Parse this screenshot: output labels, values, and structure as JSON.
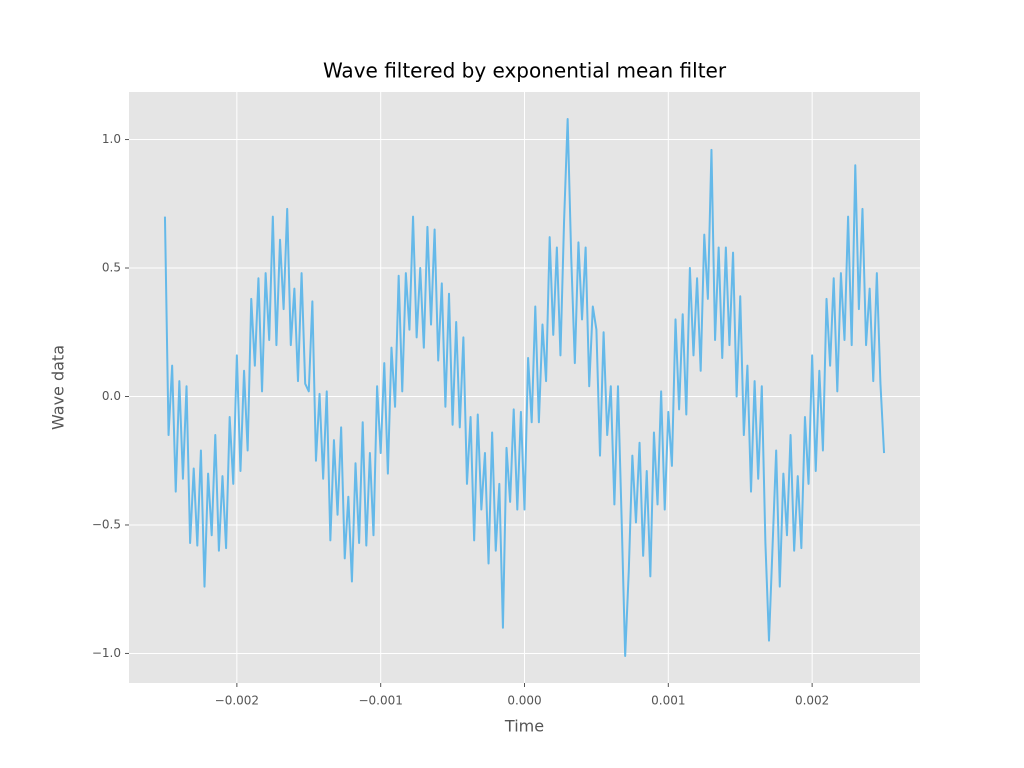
{
  "chart_data": {
    "type": "line",
    "title": "Wave filtered by exponential mean filter",
    "xlabel": "Time",
    "ylabel": "Wave data",
    "xlim": [
      -0.00275,
      0.00275
    ],
    "ylim": [
      -1.115,
      1.185
    ],
    "xticks": [
      {
        "value": -0.002,
        "label": "−0.002"
      },
      {
        "value": -0.001,
        "label": "−0.001"
      },
      {
        "value": 0,
        "label": "0.000"
      },
      {
        "value": 0.001,
        "label": "0.001"
      },
      {
        "value": 0.002,
        "label": "0.002"
      }
    ],
    "yticks": [
      {
        "value": -1.0,
        "label": "−1.0"
      },
      {
        "value": -0.5,
        "label": "−0.5"
      },
      {
        "value": 0.0,
        "label": "0.0"
      },
      {
        "value": 0.5,
        "label": "0.5"
      },
      {
        "value": 1.0,
        "label": "1.0"
      }
    ],
    "grid": true,
    "x": [
      -0.0025,
      -0.002475,
      -0.00245,
      -0.002425,
      -0.0024,
      -0.002375,
      -0.00235,
      -0.002325,
      -0.0023,
      -0.002275,
      -0.00225,
      -0.002225,
      -0.0022,
      -0.002175,
      -0.00215,
      -0.002125,
      -0.0021,
      -0.002075,
      -0.00205,
      -0.002025,
      -0.002,
      -0.001975,
      -0.00195,
      -0.001925,
      -0.0019,
      -0.001875,
      -0.00185,
      -0.001825,
      -0.0018,
      -0.001775,
      -0.00175,
      -0.001725,
      -0.0017,
      -0.001675,
      -0.00165,
      -0.001625,
      -0.0016,
      -0.001575,
      -0.00155,
      -0.001525,
      -0.0015,
      -0.001475,
      -0.00145,
      -0.001425,
      -0.0014,
      -0.001375,
      -0.00135,
      -0.001325,
      -0.0013,
      -0.001275,
      -0.00125,
      -0.001225,
      -0.0012,
      -0.001175,
      -0.00115,
      -0.001125,
      -0.0011,
      -0.001075,
      -0.00105,
      -0.001025,
      -0.001,
      -0.000975,
      -0.00095,
      -0.000925,
      -0.0009,
      -0.000875,
      -0.00085,
      -0.000825,
      -0.0008,
      -0.000775,
      -0.00075,
      -0.000725,
      -0.0007,
      -0.000675,
      -0.00065,
      -0.000625,
      -0.0006,
      -0.000575,
      -0.00055,
      -0.000525,
      -0.0005,
      -0.000475,
      -0.00045,
      -0.000425,
      -0.0004,
      -0.000375,
      -0.00035,
      -0.000325,
      -0.0003,
      -0.000275,
      -0.00025,
      -0.000225,
      -0.0002,
      -0.000175,
      -0.00015,
      -0.000125,
      -0.0001,
      -7.5e-05,
      -5e-05,
      -2.5e-05,
      0,
      2.5e-05,
      5e-05,
      7.5e-05,
      0.0001,
      0.000125,
      0.00015,
      0.000175,
      0.0002,
      0.000225,
      0.00025,
      0.000275,
      0.0003,
      0.000325,
      0.00035,
      0.000375,
      0.0004,
      0.000425,
      0.00045,
      0.000475,
      0.0005,
      0.000525,
      0.00055,
      0.000575,
      0.0006,
      0.000625,
      0.00065,
      0.000675,
      0.0007,
      0.000725,
      0.00075,
      0.000775,
      0.0008,
      0.000825,
      0.00085,
      0.000875,
      0.0009,
      0.000925,
      0.00095,
      0.000975,
      0.001,
      0.001025,
      0.00105,
      0.001075,
      0.0011,
      0.001125,
      0.00115,
      0.001175,
      0.0012,
      0.001225,
      0.00125,
      0.001275,
      0.0013,
      0.001325,
      0.00135,
      0.001375,
      0.0014,
      0.001425,
      0.00145,
      0.001475,
      0.0015,
      0.001525,
      0.00155,
      0.001575,
      0.0016,
      0.001625,
      0.00165,
      0.001675,
      0.0017,
      0.001725,
      0.00175,
      0.001775,
      0.0018,
      0.001825,
      0.00185,
      0.001875,
      0.0019,
      0.001925,
      0.00195,
      0.001975,
      0.002,
      0.002025,
      0.00205,
      0.002075,
      0.0021,
      0.002125,
      0.00215,
      0.002175,
      0.0022,
      0.002225,
      0.00225,
      0.002275,
      0.0023,
      0.002325,
      0.00235,
      0.002375,
      0.0024,
      0.002425,
      0.00245,
      0.002475,
      0.0025
    ],
    "series": [
      {
        "color": "#56b4e9",
        "values": [
          0.7,
          -0.15,
          0.12,
          -0.37,
          0.06,
          -0.32,
          0.04,
          -0.57,
          -0.28,
          -0.58,
          -0.21,
          -0.74,
          -0.3,
          -0.54,
          -0.15,
          -0.6,
          -0.31,
          -0.59,
          -0.08,
          -0.34,
          0.16,
          -0.29,
          0.1,
          -0.21,
          0.38,
          0.12,
          0.46,
          0.02,
          0.48,
          0.22,
          0.7,
          0.2,
          0.61,
          0.34,
          0.73,
          0.2,
          0.42,
          0.06,
          0.48,
          0.05,
          0.02,
          0.37,
          -0.25,
          0.01,
          -0.32,
          0.02,
          -0.56,
          -0.17,
          -0.46,
          -0.12,
          -0.63,
          -0.39,
          -0.72,
          -0.26,
          -0.57,
          -0.1,
          -0.58,
          -0.22,
          -0.54,
          0.04,
          -0.22,
          0.13,
          -0.3,
          0.19,
          -0.04,
          0.47,
          0.02,
          0.48,
          0.26,
          0.7,
          0.23,
          0.5,
          0.19,
          0.66,
          0.28,
          0.65,
          0.14,
          0.44,
          -0.04,
          0.4,
          -0.11,
          0.29,
          -0.12,
          0.23,
          -0.34,
          -0.08,
          -0.56,
          -0.07,
          -0.44,
          -0.22,
          -0.65,
          -0.14,
          -0.6,
          -0.34,
          -0.9,
          -0.2,
          -0.41,
          -0.05,
          -0.44,
          -0.06,
          -0.44,
          0.15,
          -0.1,
          0.35,
          -0.1,
          0.28,
          0.06,
          0.62,
          0.24,
          0.58,
          0.16,
          0.68,
          1.08,
          0.54,
          0.13,
          0.6,
          0.3,
          0.58,
          0.04,
          0.35,
          0.26,
          -0.23,
          0.25,
          -0.15,
          0.04,
          -0.42,
          0.04,
          -0.47,
          -1.01,
          -0.68,
          -0.23,
          -0.49,
          -0.18,
          -0.62,
          -0.29,
          -0.7,
          -0.14,
          -0.42,
          0.02,
          -0.44,
          -0.06,
          -0.27,
          0.3,
          -0.05,
          0.32,
          -0.07,
          0.5,
          0.16,
          0.46,
          0.1,
          0.63,
          0.38,
          0.96,
          0.22,
          0.58,
          0.15,
          0.58,
          0.2,
          0.56,
          0.0,
          0.39,
          -0.15,
          0.12,
          -0.37,
          0.06,
          -0.32,
          0.04,
          -0.57,
          -0.95,
          -0.58,
          -0.21,
          -0.74,
          -0.3,
          -0.54,
          -0.15,
          -0.6,
          -0.31,
          -0.59,
          -0.08,
          -0.34,
          0.16,
          -0.29,
          0.1,
          -0.21,
          0.38,
          0.12,
          0.46,
          0.02,
          0.48,
          0.22,
          0.7,
          0.2,
          0.9,
          0.34,
          0.73,
          0.2,
          0.42,
          0.06,
          0.48,
          0.05,
          -0.22
        ]
      }
    ]
  }
}
